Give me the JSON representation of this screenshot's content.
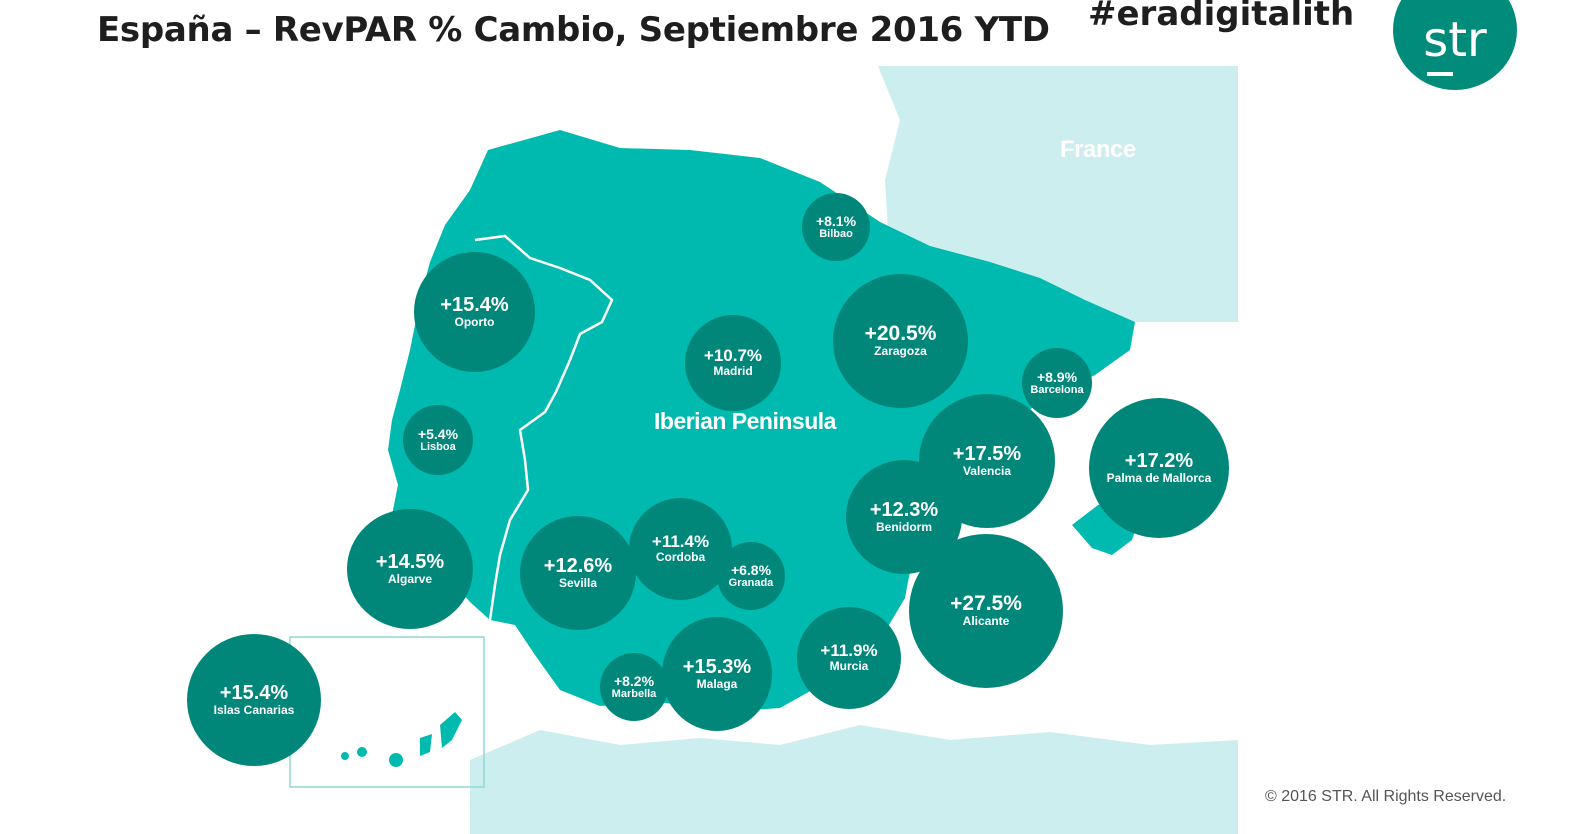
{
  "title": "España – RevPAR % Cambio, Septiembre 2016 YTD",
  "hashtag": "#eradigitalith",
  "logo": {
    "text": "str",
    "color": "#008b7a"
  },
  "map": {
    "country_label": "France",
    "region_label": "Iberian Peninsula",
    "colors": {
      "land": "#00bab0",
      "neighbor": "#cdeeee",
      "bubble": "#00877a",
      "border_line": "#ffffff"
    }
  },
  "markers": [
    {
      "city": "Bilbao",
      "value": "+8.1%"
    },
    {
      "city": "Oporto",
      "value": "+15.4%"
    },
    {
      "city": "Madrid",
      "value": "+10.7%"
    },
    {
      "city": "Zaragoza",
      "value": "+20.5%"
    },
    {
      "city": "Barcelona",
      "value": "+8.9%"
    },
    {
      "city": "Lisboa",
      "value": "+5.4%"
    },
    {
      "city": "Valencia",
      "value": "+17.5%"
    },
    {
      "city": "Palma de Mallorca",
      "value": "+17.2%"
    },
    {
      "city": "Benidorm",
      "value": "+12.3%"
    },
    {
      "city": "Algarve",
      "value": "+14.5%"
    },
    {
      "city": "Sevilla",
      "value": "+12.6%"
    },
    {
      "city": "Cordoba",
      "value": "+11.4%"
    },
    {
      "city": "Granada",
      "value": "+6.8%"
    },
    {
      "city": "Alicante",
      "value": "+27.5%"
    },
    {
      "city": "Murcia",
      "value": "+11.9%"
    },
    {
      "city": "Malaga",
      "value": "+15.3%"
    },
    {
      "city": "Marbella",
      "value": "+8.2%"
    },
    {
      "city": "Islas Canarias",
      "value": "+15.4%"
    }
  ],
  "copyright": "© 2016 STR. All Rights Reserved."
}
